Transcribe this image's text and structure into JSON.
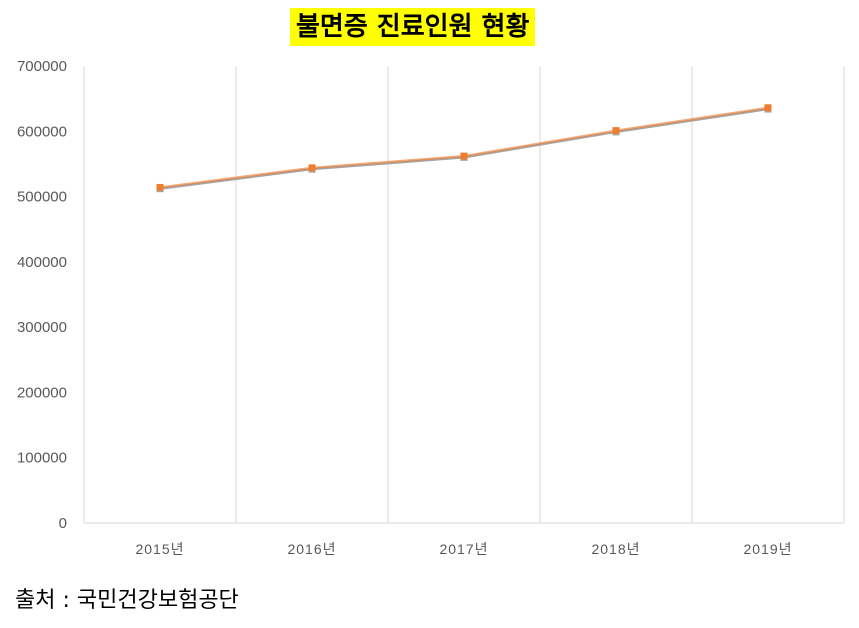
{
  "chart_data": {
    "type": "line",
    "title": "불면증 진료인원 현황",
    "categories": [
      "2015년",
      "2016년",
      "2017년",
      "2018년",
      "2019년"
    ],
    "series": [
      {
        "values": [
          512000,
          542000,
          560000,
          599000,
          634000
        ],
        "color": "#a5a5a5",
        "marker": "square"
      },
      {
        "values": [
          514000,
          544000,
          562000,
          601000,
          636000
        ],
        "color": "#ed7d31",
        "marker": "square"
      }
    ],
    "ylim": [
      0,
      700000
    ],
    "yticks": [
      "0",
      "100000",
      "200000",
      "300000",
      "400000",
      "500000",
      "600000",
      "700000"
    ],
    "grid": "vertical",
    "xlabel": "",
    "ylabel": ""
  },
  "source": "출처 : 국민건강보험공단"
}
